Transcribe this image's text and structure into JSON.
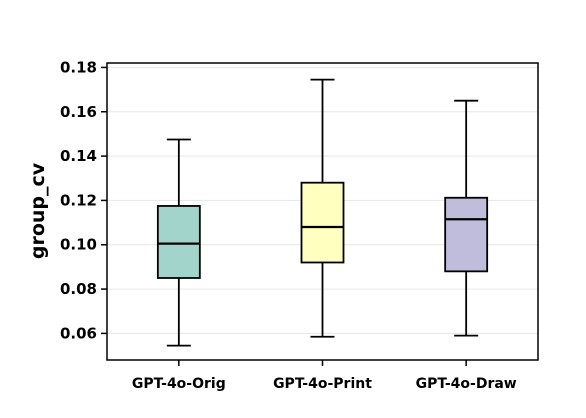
{
  "chart_data": {
    "type": "box",
    "title": "",
    "xlabel": "",
    "ylabel": "group_cv",
    "ylim": [
      0.048,
      0.182
    ],
    "yticks": [
      0.06,
      0.08,
      0.1,
      0.12,
      0.14,
      0.16,
      0.18
    ],
    "ytick_labels": [
      "0.06",
      "0.08",
      "0.10",
      "0.12",
      "0.14",
      "0.16",
      "0.18"
    ],
    "grid": "horizontal",
    "categories": [
      "GPT-4o-Orig",
      "GPT-4o-Print",
      "GPT-4o-Draw"
    ],
    "series": [
      {
        "category": "GPT-4o-Orig",
        "min": 0.0545,
        "q1": 0.085,
        "median": 0.1005,
        "q3": 0.1175,
        "max": 0.1475,
        "color": "#a3d4cc"
      },
      {
        "category": "GPT-4o-Print",
        "min": 0.0585,
        "q1": 0.092,
        "median": 0.108,
        "q3": 0.128,
        "max": 0.1745,
        "color": "#ffffc0"
      },
      {
        "category": "GPT-4o-Draw",
        "min": 0.059,
        "q1": 0.088,
        "median": 0.1115,
        "q3": 0.1212,
        "max": 0.165,
        "color": "#c0bcdb"
      }
    ]
  }
}
